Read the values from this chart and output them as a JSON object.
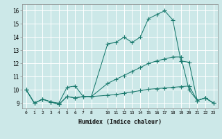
{
  "xlabel": "Humidex (Indice chaleur)",
  "bg_color": "#cce8e8",
  "grid_color": "#ffffff",
  "line_color": "#1a7a6e",
  "xlim": [
    -0.5,
    23.5
  ],
  "ylim": [
    8.6,
    16.5
  ],
  "xticks": [
    0,
    1,
    2,
    3,
    4,
    5,
    6,
    7,
    8,
    10,
    11,
    12,
    13,
    14,
    15,
    16,
    17,
    18,
    19,
    20,
    21,
    22,
    23
  ],
  "yticks": [
    9,
    10,
    11,
    12,
    13,
    14,
    15,
    16
  ],
  "line1_x": [
    0,
    1,
    2,
    3,
    4,
    5,
    6,
    7,
    8,
    10,
    11,
    12,
    13,
    14,
    15,
    16,
    17,
    18,
    19,
    20,
    21,
    22,
    23
  ],
  "line1_y": [
    10,
    9,
    9.3,
    9.1,
    9.0,
    10.2,
    10.3,
    9.5,
    9.5,
    13.5,
    13.6,
    14.0,
    13.6,
    14.0,
    15.4,
    15.7,
    16.0,
    15.3,
    12.2,
    12.1,
    9.2,
    9.4,
    9.0
  ],
  "line2_x": [
    0,
    1,
    2,
    3,
    4,
    5,
    6,
    7,
    8,
    10,
    11,
    12,
    13,
    14,
    15,
    16,
    17,
    18,
    19,
    20,
    21,
    22,
    23
  ],
  "line2_y": [
    10,
    9,
    9.3,
    9.1,
    8.9,
    9.5,
    9.4,
    9.5,
    9.5,
    9.6,
    9.65,
    9.75,
    9.85,
    9.95,
    10.05,
    10.1,
    10.15,
    10.2,
    10.25,
    10.3,
    9.2,
    9.4,
    9.0
  ],
  "line3_x": [
    0,
    1,
    2,
    3,
    4,
    5,
    6,
    7,
    8,
    10,
    11,
    12,
    13,
    14,
    15,
    16,
    17,
    18,
    19,
    20,
    21,
    22,
    23
  ],
  "line3_y": [
    10,
    9,
    9.3,
    9.1,
    8.9,
    9.5,
    9.4,
    9.5,
    9.5,
    10.5,
    10.8,
    11.1,
    11.4,
    11.7,
    12.0,
    12.2,
    12.35,
    12.5,
    12.5,
    10.0,
    9.2,
    9.4,
    9.0
  ]
}
